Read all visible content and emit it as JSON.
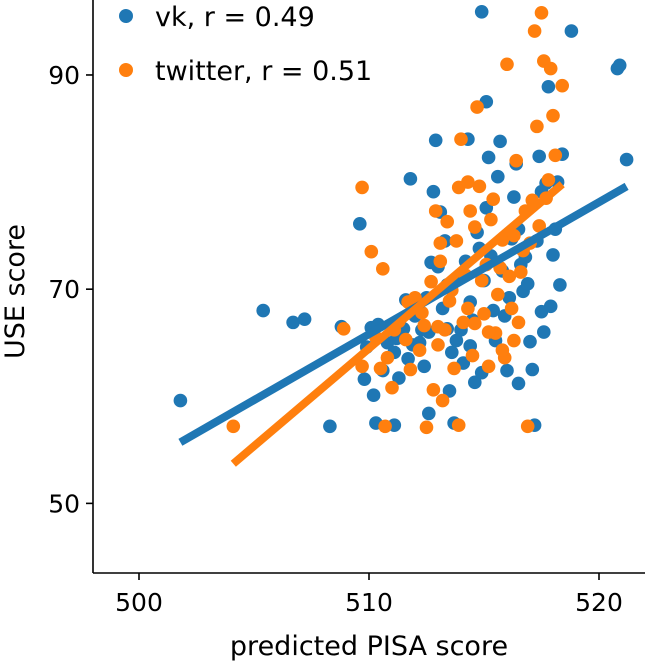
{
  "chart_data": {
    "type": "scatter",
    "title": "",
    "xlabel": "predicted PISA score",
    "ylabel": "USE score",
    "xlim": [
      498,
      522
    ],
    "ylim": [
      43.5,
      97
    ],
    "xticks": [
      500,
      510,
      520
    ],
    "yticks": [
      50,
      70,
      90
    ],
    "grid": false,
    "legend_position": "top-left",
    "series": [
      {
        "name": "vk",
        "legend_label": "vk, r = 0.49",
        "color": "#1f77b4",
        "points": [
          [
            501.8,
            59.6
          ],
          [
            505.4,
            68.0
          ],
          [
            506.7,
            66.9
          ],
          [
            507.2,
            67.2
          ],
          [
            508.3,
            57.2
          ],
          [
            508.8,
            66.5
          ],
          [
            509.6,
            76.1
          ],
          [
            509.8,
            61.6
          ],
          [
            509.9,
            64.6
          ],
          [
            510.1,
            66.4
          ],
          [
            510.2,
            60.1
          ],
          [
            510.3,
            57.5
          ],
          [
            510.4,
            66.7
          ],
          [
            510.6,
            62.4
          ],
          [
            510.8,
            65.0
          ],
          [
            511.1,
            64.1
          ],
          [
            511.2,
            65.4
          ],
          [
            511.3,
            61.7
          ],
          [
            511.5,
            66.3
          ],
          [
            511.6,
            69.0
          ],
          [
            511.7,
            63.5
          ],
          [
            511.8,
            80.3
          ],
          [
            511.9,
            64.8
          ],
          [
            512.0,
            67.5
          ],
          [
            512.1,
            68.7
          ],
          [
            512.2,
            65.0
          ],
          [
            512.3,
            66.2
          ],
          [
            512.4,
            62.8
          ],
          [
            512.5,
            69.2
          ],
          [
            512.6,
            66.0
          ],
          [
            512.7,
            72.5
          ],
          [
            512.8,
            79.1
          ],
          [
            512.9,
            83.9
          ],
          [
            513.0,
            72.1
          ],
          [
            513.1,
            77.2
          ],
          [
            513.2,
            68.2
          ],
          [
            513.3,
            74.5
          ],
          [
            513.4,
            70.4
          ],
          [
            513.5,
            60.5
          ],
          [
            513.6,
            64.1
          ],
          [
            513.7,
            57.5
          ],
          [
            513.8,
            65.2
          ],
          [
            513.9,
            71.2
          ],
          [
            514.0,
            66.2
          ],
          [
            514.1,
            63.1
          ],
          [
            514.2,
            72.6
          ],
          [
            514.3,
            84.0
          ],
          [
            514.4,
            68.8
          ],
          [
            514.5,
            67.1
          ],
          [
            514.6,
            61.3
          ],
          [
            514.7,
            75.3
          ],
          [
            514.8,
            73.8
          ],
          [
            514.9,
            95.9
          ],
          [
            515.0,
            70.8
          ],
          [
            515.1,
            87.5
          ],
          [
            515.2,
            82.3
          ],
          [
            515.3,
            73.1
          ],
          [
            515.4,
            68.0
          ],
          [
            515.5,
            65.2
          ],
          [
            515.6,
            80.5
          ],
          [
            515.7,
            83.8
          ],
          [
            515.8,
            71.7
          ],
          [
            515.9,
            67.5
          ],
          [
            516.0,
            62.4
          ],
          [
            516.1,
            69.2
          ],
          [
            516.2,
            74.7
          ],
          [
            516.3,
            78.6
          ],
          [
            516.4,
            81.7
          ],
          [
            516.5,
            75.6
          ],
          [
            516.6,
            72.3
          ],
          [
            516.7,
            69.8
          ],
          [
            516.8,
            73.0
          ],
          [
            516.9,
            70.5
          ],
          [
            517.0,
            65.1
          ],
          [
            517.1,
            62.5
          ],
          [
            517.2,
            57.3
          ],
          [
            517.3,
            74.5
          ],
          [
            517.4,
            82.4
          ],
          [
            517.5,
            67.9
          ],
          [
            517.6,
            66.0
          ],
          [
            517.7,
            79.9
          ],
          [
            517.8,
            88.9
          ],
          [
            517.9,
            68.4
          ],
          [
            518.0,
            73.2
          ],
          [
            518.1,
            75.6
          ],
          [
            518.2,
            80.0
          ],
          [
            518.3,
            70.4
          ],
          [
            518.4,
            82.6
          ],
          [
            518.8,
            94.1
          ],
          [
            520.8,
            90.6
          ],
          [
            520.9,
            90.9
          ],
          [
            521.2,
            82.1
          ],
          [
            512.6,
            58.4
          ],
          [
            514.4,
            64.7
          ],
          [
            515.1,
            77.6
          ],
          [
            516.5,
            61.2
          ],
          [
            513.4,
            66.3
          ],
          [
            517.5,
            79.1
          ],
          [
            511.1,
            57.3
          ],
          [
            514.9,
            62.2
          ]
        ],
        "fit_line": [
          [
            501.8,
            55.7
          ],
          [
            521.2,
            79.6
          ]
        ]
      },
      {
        "name": "twitter",
        "legend_label": "twitter, r = 0.51",
        "color": "#ff7f0e",
        "points": [
          [
            504.1,
            57.2
          ],
          [
            508.9,
            66.3
          ],
          [
            509.7,
            62.8
          ],
          [
            509.7,
            79.5
          ],
          [
            510.1,
            73.5
          ],
          [
            510.3,
            65.5
          ],
          [
            510.5,
            62.6
          ],
          [
            510.6,
            71.9
          ],
          [
            510.7,
            57.2
          ],
          [
            511.0,
            60.8
          ],
          [
            511.1,
            66.2
          ],
          [
            511.3,
            67.0
          ],
          [
            511.6,
            65.3
          ],
          [
            511.8,
            62.5
          ],
          [
            512.0,
            69.2
          ],
          [
            512.2,
            64.3
          ],
          [
            512.4,
            66.6
          ],
          [
            512.5,
            57.1
          ],
          [
            512.8,
            60.6
          ],
          [
            512.9,
            77.3
          ],
          [
            513.0,
            64.8
          ],
          [
            513.1,
            74.3
          ],
          [
            513.2,
            59.6
          ],
          [
            513.3,
            66.2
          ],
          [
            513.4,
            76.3
          ],
          [
            513.5,
            68.9
          ],
          [
            513.6,
            69.9
          ],
          [
            513.7,
            62.6
          ],
          [
            513.8,
            74.5
          ],
          [
            513.9,
            79.5
          ],
          [
            514.0,
            84.0
          ],
          [
            514.1,
            66.9
          ],
          [
            514.2,
            71.3
          ],
          [
            514.3,
            80.0
          ],
          [
            514.4,
            77.3
          ],
          [
            514.5,
            63.8
          ],
          [
            514.6,
            66.8
          ],
          [
            514.7,
            87.0
          ],
          [
            514.8,
            79.6
          ],
          [
            514.9,
            70.8
          ],
          [
            515.0,
            67.7
          ],
          [
            515.1,
            72.3
          ],
          [
            515.2,
            62.8
          ],
          [
            515.3,
            76.5
          ],
          [
            515.4,
            78.4
          ],
          [
            515.5,
            65.9
          ],
          [
            515.6,
            69.5
          ],
          [
            515.7,
            72.0
          ],
          [
            515.8,
            74.6
          ],
          [
            515.9,
            63.6
          ],
          [
            516.0,
            91.0
          ],
          [
            516.1,
            71.2
          ],
          [
            516.2,
            68.2
          ],
          [
            516.3,
            75.0
          ],
          [
            516.4,
            82.0
          ],
          [
            516.5,
            66.9
          ],
          [
            516.6,
            71.6
          ],
          [
            516.7,
            73.6
          ],
          [
            516.8,
            77.3
          ],
          [
            516.9,
            57.2
          ],
          [
            517.0,
            74.3
          ],
          [
            517.1,
            78.3
          ],
          [
            517.2,
            94.1
          ],
          [
            517.3,
            85.2
          ],
          [
            517.4,
            75.9
          ],
          [
            517.5,
            95.8
          ],
          [
            517.6,
            91.3
          ],
          [
            517.7,
            78.5
          ],
          [
            517.8,
            80.2
          ],
          [
            517.9,
            90.6
          ],
          [
            518.0,
            86.2
          ],
          [
            518.1,
            82.5
          ],
          [
            518.4,
            89.0
          ],
          [
            513.0,
            66.5
          ],
          [
            514.3,
            68.2
          ],
          [
            512.7,
            70.7
          ],
          [
            510.8,
            63.6
          ],
          [
            515.8,
            64.3
          ],
          [
            511.7,
            68.8
          ],
          [
            513.9,
            57.3
          ],
          [
            516.3,
            65.2
          ],
          [
            512.3,
            67.8
          ],
          [
            513.1,
            72.6
          ],
          [
            514.6,
            75.8
          ],
          [
            515.2,
            66.0
          ]
        ],
        "fit_line": [
          [
            504.1,
            53.7
          ],
          [
            518.4,
            79.8
          ]
        ]
      }
    ]
  }
}
